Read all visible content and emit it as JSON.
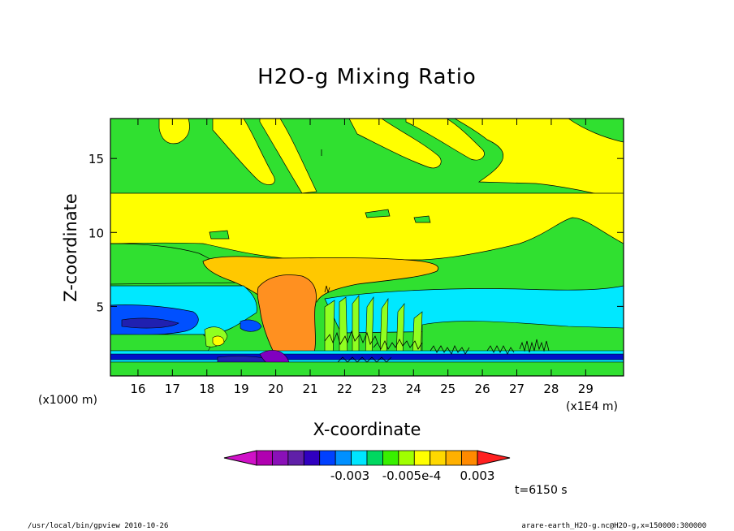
{
  "chart_data": {
    "type": "heatmap",
    "title": "H2O-g Mixing Ratio",
    "xlabel": "X-coordinate",
    "ylabel": "Z-coordinate",
    "x_units_left": "(x1000 m)",
    "x_units_right": "(x1E4 m)",
    "xlim": [
      15.2,
      30.1
    ],
    "ylim": [
      0.3,
      17.7
    ],
    "x_ticks": [
      16,
      17,
      18,
      19,
      20,
      21,
      22,
      23,
      24,
      25,
      26,
      27,
      28,
      29
    ],
    "y_ticks": [
      5,
      10,
      15
    ],
    "colorbar": {
      "tick_labels": [
        "-0.003",
        "-0.005e-4",
        "0.003"
      ],
      "colors": [
        "#d011c8",
        "#b000b0",
        "#8a10b8",
        "#6020a8",
        "#3000c0",
        "#0040ff",
        "#0090ff",
        "#00e6ff",
        "#00d860",
        "#38f000",
        "#a0ff00",
        "#ffff00",
        "#ffd800",
        "#ffb000",
        "#ff8a00",
        "#ff2020"
      ]
    },
    "time_label": "t=6150 s"
  },
  "footer": {
    "left": "/usr/local/bin/gpview   2010-10-26",
    "right": "arare-earth_H2O-g.nc@H2O-g,x=150000:300000"
  },
  "palette": {
    "magenta": "#c800c8",
    "purple": "#8000c0",
    "dark_blue": "#0010c8",
    "blue": "#0050ff",
    "cyan": "#00e8ff",
    "green": "#30e030",
    "light_green": "#90ff20",
    "yellow": "#ffff00",
    "gold": "#ffc800",
    "orange": "#ff9020",
    "red": "#ff2020"
  }
}
